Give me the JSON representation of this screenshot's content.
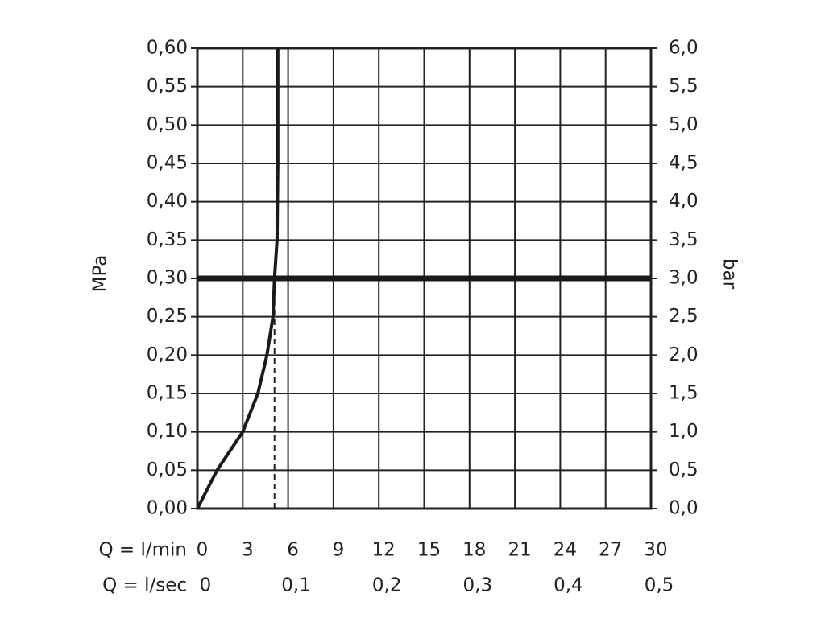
{
  "chart_data": {
    "type": "line",
    "ylabel": "MPa",
    "y2label": "bar",
    "xlabel": "Q = l/min",
    "x2label": "Q = l/sec",
    "xlim": [
      0,
      30
    ],
    "xticks": [
      0,
      3,
      6,
      9,
      12,
      15,
      18,
      21,
      24,
      27,
      30
    ],
    "x2lim": [
      0,
      0.5
    ],
    "x2ticks": [
      0,
      {
        "value": 0.1,
        "label": "0,1"
      },
      {
        "value": 0.2,
        "label": "0,2"
      },
      {
        "value": 0.3,
        "label": "0,3"
      },
      {
        "value": 0.4,
        "label": "0,4"
      },
      {
        "value": 0.5,
        "label": "0,5"
      }
    ],
    "ylim": [
      0,
      0.6
    ],
    "yticks": [
      {
        "value": 0,
        "label": "0,00"
      },
      {
        "value": 0.05,
        "label": "0,05"
      },
      {
        "value": 0.1,
        "label": "0,10"
      },
      {
        "value": 0.15,
        "label": "0,15"
      },
      {
        "value": 0.2,
        "label": "0,20"
      },
      {
        "value": 0.25,
        "label": "0,25"
      },
      {
        "value": 0.3,
        "label": "0,30"
      },
      {
        "value": 0.35,
        "label": "0,35"
      },
      {
        "value": 0.4,
        "label": "0,40"
      },
      {
        "value": 0.45,
        "label": "0,45"
      },
      {
        "value": 0.5,
        "label": "0,50"
      },
      {
        "value": 0.55,
        "label": "0,55"
      },
      {
        "value": 0.6,
        "label": "0,60"
      }
    ],
    "y2lim": [
      0,
      6
    ],
    "y2ticks": [
      {
        "value": 0,
        "label": "0,0"
      },
      {
        "value": 0.5,
        "label": "0,5"
      },
      {
        "value": 1,
        "label": "1,0"
      },
      {
        "value": 1.5,
        "label": "1,5"
      },
      {
        "value": 2,
        "label": "2,0"
      },
      {
        "value": 2.5,
        "label": "2,5"
      },
      {
        "value": 3,
        "label": "3,0"
      },
      {
        "value": 3.5,
        "label": "3,5"
      },
      {
        "value": 4,
        "label": "4,0"
      },
      {
        "value": 4.5,
        "label": "4,5"
      },
      {
        "value": 5,
        "label": "5,0"
      },
      {
        "value": 5.5,
        "label": "5,5"
      },
      {
        "value": 6,
        "label": "6,0"
      }
    ],
    "grid": true,
    "series": [
      {
        "color": "#1a1a1a",
        "x": [
          0,
          1.3,
          3,
          4,
          4.6,
          5.0,
          5.1,
          5.27,
          5.32,
          5.32
        ],
        "values": [
          0,
          0.05,
          0.1,
          0.15,
          0.2,
          0.25,
          0.3,
          0.35,
          0.45,
          0.6
        ]
      }
    ],
    "reference_line": {
      "y": 0.3,
      "x": 5.1
    }
  }
}
